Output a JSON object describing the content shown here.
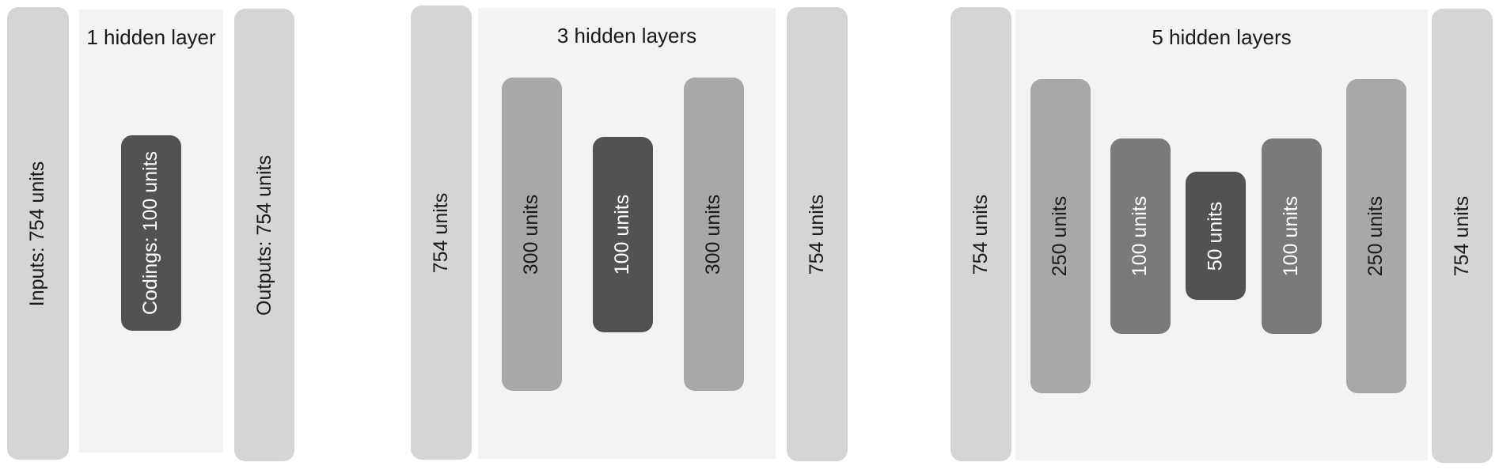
{
  "diagrams": [
    {
      "title": "1 hidden layer",
      "layers": [
        "Inputs: 754 units",
        "Codings: 100 units",
        "Outputs: 754 units"
      ]
    },
    {
      "title": "3 hidden layers",
      "layers": [
        "754 units",
        "300 units",
        "100 units",
        "300 units",
        "754 units"
      ]
    },
    {
      "title": "5 hidden layers",
      "layers": [
        "754 units",
        "250 units",
        "100 units",
        "50 units",
        "100 units",
        "250 units",
        "754 units"
      ]
    }
  ],
  "colors": {
    "panel_background": "#f3f3f3",
    "io_layer": "#d5d5d5",
    "wide_hidden_layer": "#a8a8a8",
    "inner_hidden_layer": "#7a7a7a",
    "coding_layer": "#525252"
  }
}
